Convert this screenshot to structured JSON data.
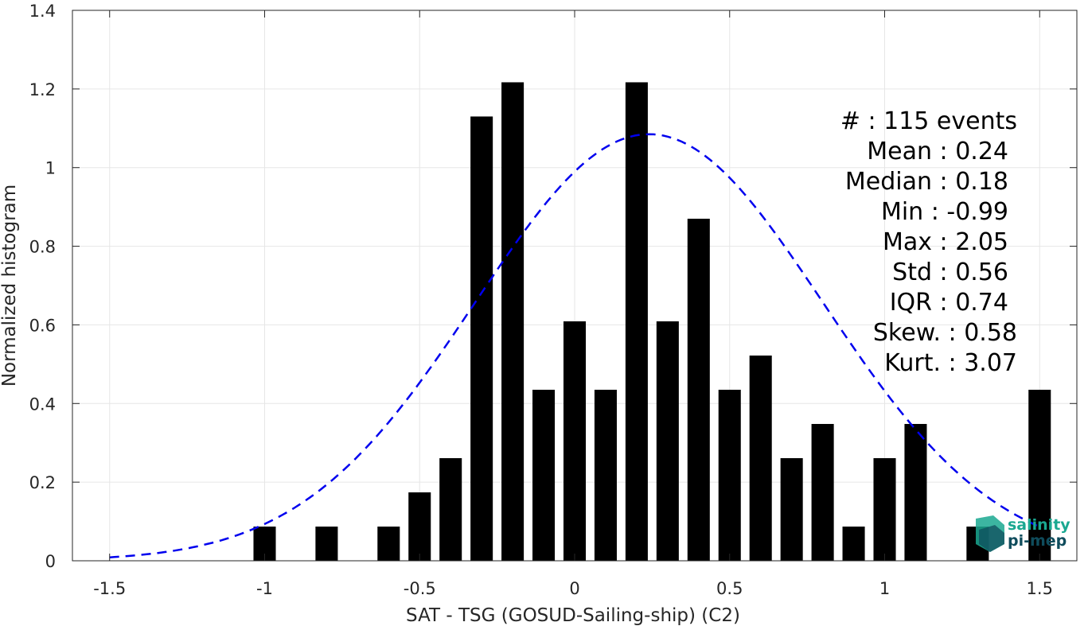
{
  "chart_data": {
    "type": "bar",
    "title": "",
    "xlabel": "SAT - TSG (GOSUD-Sailing-ship) (C2)",
    "ylabel": "Normalized histogram",
    "xlim": [
      -1.62,
      1.62
    ],
    "ylim": [
      0,
      1.4
    ],
    "grid": true,
    "bar_width": 0.072,
    "x_ticks": [
      "-1.5",
      "-1",
      "-0.5",
      "0",
      "0.5",
      "1",
      "1.5"
    ],
    "x_tick_values": [
      -1.5,
      -1,
      -0.5,
      0,
      0.5,
      1,
      1.5
    ],
    "y_ticks": [
      "0",
      "0.2",
      "0.4",
      "0.6",
      "0.8",
      "1",
      "1.2",
      "1.4"
    ],
    "y_tick_values": [
      0,
      0.2,
      0.4,
      0.6,
      0.8,
      1.0,
      1.2,
      1.4
    ],
    "series": [
      {
        "type": "bar",
        "color": "#000000",
        "x": [
          -1.0,
          -0.8,
          -0.6,
          -0.5,
          -0.4,
          -0.3,
          -0.2,
          -0.1,
          0.0,
          0.1,
          0.2,
          0.3,
          0.4,
          0.5,
          0.6,
          0.7,
          0.8,
          0.9,
          1.0,
          1.1,
          1.3,
          1.5
        ],
        "values": [
          0.087,
          0.087,
          0.087,
          0.174,
          0.261,
          1.13,
          1.217,
          0.435,
          0.609,
          0.435,
          1.217,
          0.609,
          0.87,
          0.435,
          0.522,
          0.261,
          0.348,
          0.087,
          0.261,
          0.348,
          0.087,
          0.435
        ]
      },
      {
        "type": "line",
        "style": "dashed",
        "color": "#0000ee",
        "fit": "normal",
        "mean": 0.24,
        "std": 0.56,
        "scale": 1.085,
        "x_range": [
          -1.5,
          1.5
        ]
      }
    ],
    "annotations": [
      "#  : 115 events",
      "Mean : 0.24",
      "Median : 0.18",
      "Min : -0.99",
      "Max : 2.05",
      "Std : 0.56",
      "IQR : 0.74",
      "Skew. : 0.58",
      "Kurt. : 3.07"
    ]
  },
  "logo": {
    "line1": "salinity",
    "line2": "pi-mep",
    "color1": "#1aa891",
    "color2": "#0f4c5c"
  }
}
